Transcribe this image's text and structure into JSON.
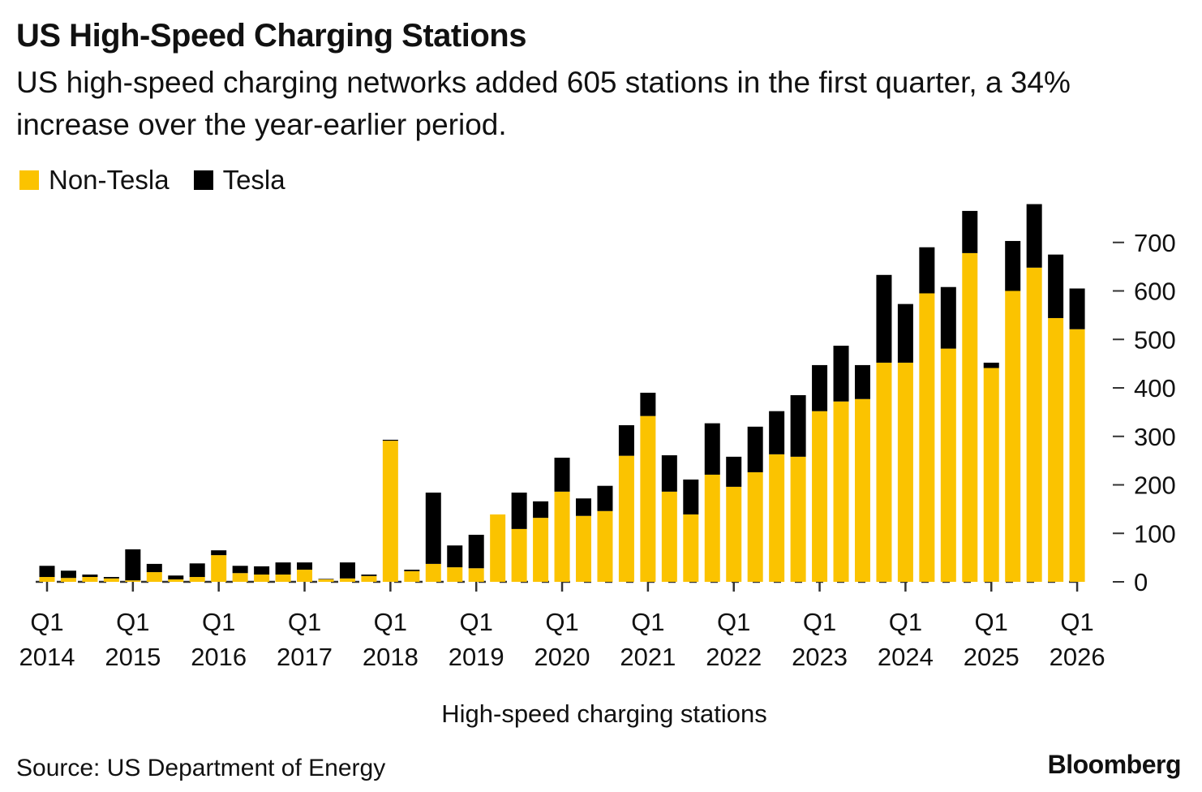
{
  "title": "US High-Speed Charging Stations",
  "subtitle": "US high-speed charging networks added 605 stations in the first quarter, a 34% increase over the year-earlier period.",
  "source": "Source: US Department of Energy",
  "brand": "Bloomberg",
  "colors": {
    "non_tesla": "#FBC300",
    "tesla": "#000000"
  },
  "chart_data": {
    "type": "bar",
    "stacked": true,
    "xlabel": "High-speed charging stations",
    "ylabel": "",
    "ylim": [
      0,
      780
    ],
    "y_ticks": [
      0,
      100,
      200,
      300,
      400,
      500,
      600,
      700
    ],
    "y_axis_position": "right",
    "grid": false,
    "legend_position": "top-left",
    "x_tick_labels": [
      {
        "q": "Q1",
        "year": "2014"
      },
      {
        "q": "Q1",
        "year": "2015"
      },
      {
        "q": "Q1",
        "year": "2016"
      },
      {
        "q": "Q1",
        "year": "2017"
      },
      {
        "q": "Q1",
        "year": "2018"
      },
      {
        "q": "Q1",
        "year": "2019"
      },
      {
        "q": "Q1",
        "year": "2020"
      },
      {
        "q": "Q1",
        "year": "2021"
      },
      {
        "q": "Q1",
        "year": "2022"
      },
      {
        "q": "Q1",
        "year": "2023"
      },
      {
        "q": "Q1",
        "year": "2024"
      },
      {
        "q": "Q1",
        "year": "2025"
      },
      {
        "q": "Q1",
        "year": "2026"
      }
    ],
    "categories": [
      "Q1 2014",
      "Q2 2014",
      "Q3 2014",
      "Q4 2014",
      "Q1 2015",
      "Q2 2015",
      "Q3 2015",
      "Q4 2015",
      "Q1 2016",
      "Q2 2016",
      "Q3 2016",
      "Q4 2016",
      "Q1 2017",
      "Q2 2017",
      "Q3 2017",
      "Q4 2017",
      "Q1 2018",
      "Q2 2018",
      "Q3 2018",
      "Q4 2018",
      "Q1 2019",
      "Q2 2019",
      "Q3 2019",
      "Q4 2019",
      "Q1 2020",
      "Q2 2020",
      "Q3 2020",
      "Q4 2020",
      "Q1 2021",
      "Q2 2021",
      "Q3 2021",
      "Q4 2021",
      "Q1 2022",
      "Q2 2022",
      "Q3 2022",
      "Q4 2022",
      "Q1 2023",
      "Q2 2023",
      "Q3 2023",
      "Q4 2023",
      "Q1 2024",
      "Q2 2024",
      "Q3 2024",
      "Q4 2024",
      "Q1 2025",
      "Q2 2025",
      "Q3 2025",
      "Q4 2025",
      "Q1 2026"
    ],
    "series": [
      {
        "name": "Non-Tesla",
        "values": [
          10,
          8,
          10,
          7,
          3,
          20,
          5,
          10,
          55,
          18,
          15,
          15,
          25,
          5,
          7,
          12,
          291,
          22,
          37,
          30,
          28,
          139,
          109,
          132,
          186,
          136,
          146,
          260,
          342,
          186,
          139,
          221,
          196,
          226,
          263,
          258,
          352,
          372,
          377,
          452,
          452,
          595,
          481,
          678,
          441,
          600,
          648,
          544,
          521
        ]
      },
      {
        "name": "Tesla",
        "values": [
          23,
          15,
          5,
          3,
          64,
          17,
          8,
          28,
          10,
          15,
          17,
          25,
          15,
          1,
          33,
          3,
          2,
          3,
          147,
          45,
          69,
          0,
          75,
          34,
          70,
          36,
          52,
          63,
          48,
          75,
          72,
          106,
          62,
          94,
          89,
          127,
          95,
          115,
          70,
          181,
          121,
          95,
          127,
          87,
          11,
          103,
          131,
          131,
          84
        ]
      }
    ]
  }
}
